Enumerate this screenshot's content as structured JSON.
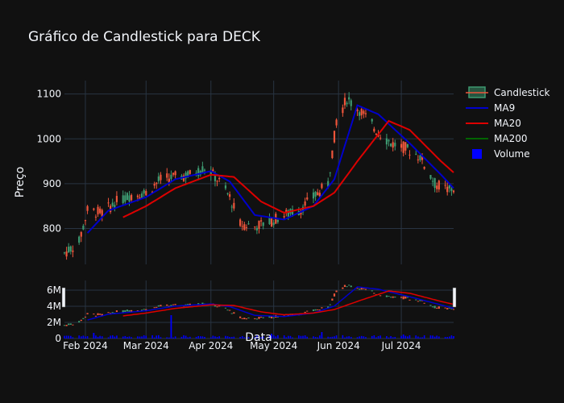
{
  "chart_data": {
    "type": "candlestick",
    "title": "Gráfico de Candlestick para DECK",
    "ylabel": "Preço",
    "xlabel": "Data",
    "background": "#111111",
    "grid": true,
    "legend_placement": "top-right",
    "legend": [
      {
        "name": "Candlestick",
        "kind": "candle",
        "color": "#ef553b",
        "color_up": "#3d9970"
      },
      {
        "name": "MA9",
        "kind": "line",
        "color": "#0000cc"
      },
      {
        "name": "MA20",
        "kind": "line",
        "color": "#dd0000"
      },
      {
        "name": "MA200",
        "kind": "line",
        "color": "#006400"
      },
      {
        "name": "Volume",
        "kind": "square",
        "color": "#0000ff"
      }
    ],
    "x_ticks": [
      {
        "label": "Feb 2024",
        "date": "2024-02-01"
      },
      {
        "label": "Mar 2024",
        "date": "2024-03-01"
      },
      {
        "label": "Apr 2024",
        "date": "2024-04-01"
      },
      {
        "label": "May 2024",
        "date": "2024-05-01"
      },
      {
        "label": "Jun 2024",
        "date": "2024-06-01"
      },
      {
        "label": "Jul 2024",
        "date": "2024-07-01"
      }
    ],
    "x_range": [
      "2024-01-22",
      "2024-07-26"
    ],
    "price_axis": {
      "ylim": [
        720,
        1130
      ],
      "ticks": [
        800,
        900,
        1000,
        1100
      ]
    },
    "volume_axis": {
      "ylim": [
        0,
        7200000
      ],
      "ticks": [
        0,
        2000000,
        4000000,
        6000000
      ],
      "tick_labels": [
        "0",
        "2M",
        "4M",
        "6M"
      ]
    },
    "ohlc_keypoints": [
      [
        "2024-01-22",
        745
      ],
      [
        "2024-01-29",
        770
      ],
      [
        "2024-02-02",
        840
      ],
      [
        "2024-02-09",
        835
      ],
      [
        "2024-02-16",
        860
      ],
      [
        "2024-02-23",
        875
      ],
      [
        "2024-03-01",
        880
      ],
      [
        "2024-03-08",
        910
      ],
      [
        "2024-03-15",
        915
      ],
      [
        "2024-03-22",
        920
      ],
      [
        "2024-03-29",
        935
      ],
      [
        "2024-04-01",
        925
      ],
      [
        "2024-04-05",
        905
      ],
      [
        "2024-04-10",
        870
      ],
      [
        "2024-04-15",
        810
      ],
      [
        "2024-04-22",
        805
      ],
      [
        "2024-04-29",
        815
      ],
      [
        "2024-05-06",
        830
      ],
      [
        "2024-05-13",
        840
      ],
      [
        "2024-05-20",
        870
      ],
      [
        "2024-05-27",
        900
      ],
      [
        "2024-05-31",
        1040
      ],
      [
        "2024-06-05",
        1090
      ],
      [
        "2024-06-12",
        1060
      ],
      [
        "2024-06-19",
        1020
      ],
      [
        "2024-06-26",
        990
      ],
      [
        "2024-07-03",
        980
      ],
      [
        "2024-07-10",
        960
      ],
      [
        "2024-07-17",
        900
      ],
      [
        "2024-07-24",
        885
      ],
      [
        "2024-07-26",
        890
      ]
    ],
    "ma9_points": [
      [
        "2024-02-02",
        790
      ],
      [
        "2024-02-12",
        840
      ],
      [
        "2024-03-01",
        870
      ],
      [
        "2024-03-15",
        910
      ],
      [
        "2024-04-01",
        928
      ],
      [
        "2024-04-10",
        905
      ],
      [
        "2024-04-22",
        830
      ],
      [
        "2024-05-06",
        820
      ],
      [
        "2024-05-20",
        850
      ],
      [
        "2024-05-30",
        910
      ],
      [
        "2024-06-05",
        1000
      ],
      [
        "2024-06-10",
        1075
      ],
      [
        "2024-06-20",
        1055
      ],
      [
        "2024-07-05",
        990
      ],
      [
        "2024-07-20",
        920
      ],
      [
        "2024-07-26",
        890
      ]
    ],
    "ma20_points": [
      [
        "2024-02-19",
        825
      ],
      [
        "2024-03-01",
        850
      ],
      [
        "2024-03-15",
        890
      ],
      [
        "2024-04-01",
        920
      ],
      [
        "2024-04-12",
        915
      ],
      [
        "2024-04-25",
        860
      ],
      [
        "2024-05-06",
        835
      ],
      [
        "2024-05-20",
        850
      ],
      [
        "2024-05-30",
        880
      ],
      [
        "2024-06-10",
        950
      ],
      [
        "2024-06-25",
        1040
      ],
      [
        "2024-07-05",
        1020
      ],
      [
        "2024-07-20",
        950
      ],
      [
        "2024-07-26",
        925
      ]
    ],
    "volume_spikes": [
      {
        "date": "2024-03-13",
        "value": 2900000
      },
      {
        "date": "2024-02-05",
        "value": 700000
      },
      {
        "date": "2024-04-30",
        "value": 600000
      },
      {
        "date": "2024-05-24",
        "value": 800000
      },
      {
        "date": "2024-07-02",
        "value": 500000
      }
    ]
  }
}
